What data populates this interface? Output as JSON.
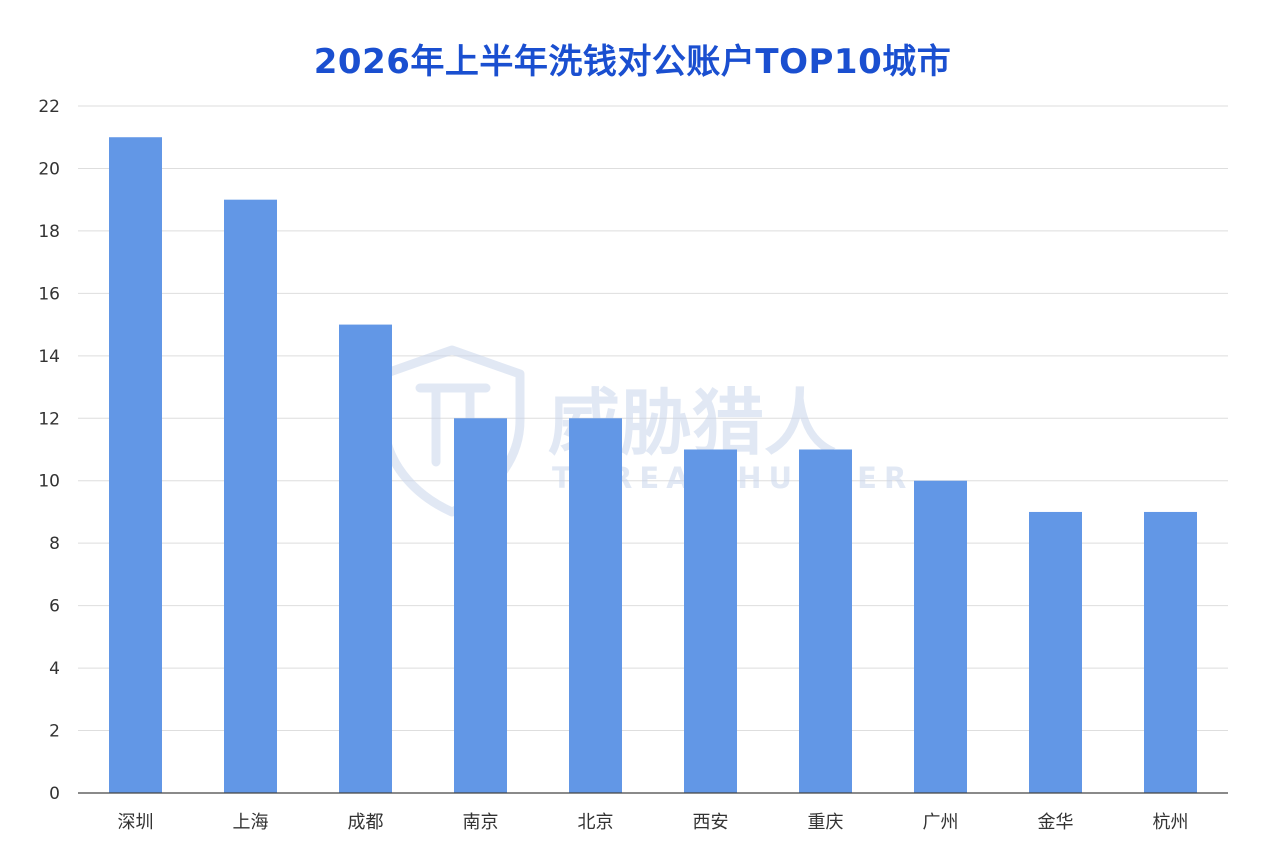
{
  "colors": {
    "title": "#1a4fd0",
    "bar": "#6297e6",
    "grid": "#dedede",
    "axis": "#444444",
    "tick_text": "#333333",
    "watermark": "#c9d6ec"
  },
  "watermark": {
    "icon": "shield-logo-icon",
    "text_cn": "威胁猎人",
    "text_en": "THREAT HUNTER"
  },
  "chart_data": {
    "type": "bar",
    "title": "2026年上半年洗钱对公账户TOP10城市",
    "xlabel": "",
    "ylabel": "",
    "categories": [
      "深圳",
      "上海",
      "成都",
      "南京",
      "北京",
      "西安",
      "重庆",
      "广州",
      "金华",
      "杭州"
    ],
    "values": [
      21,
      19,
      15,
      12,
      12,
      11,
      11,
      10,
      9,
      9
    ],
    "ylim": [
      0,
      22
    ],
    "yticks": [
      0,
      2,
      4,
      6,
      8,
      10,
      12,
      14,
      16,
      18,
      20,
      22
    ],
    "grid": true,
    "legend": "none"
  }
}
